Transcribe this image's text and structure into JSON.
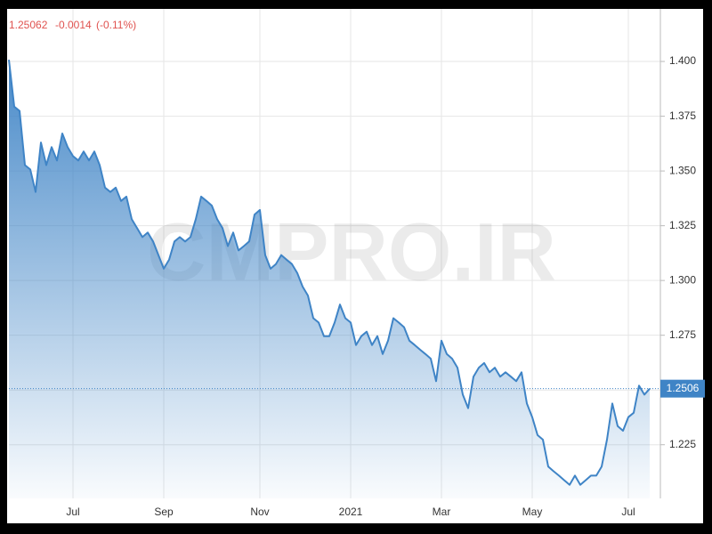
{
  "chart_data": {
    "type": "area",
    "header": {
      "price": "1.25062",
      "change": "-0.0014",
      "change_pct": "(-0.11%)"
    },
    "watermark": "CMPRO.IR",
    "last_label": "1.2506",
    "color": "#3f84c6",
    "grid": true,
    "ylim": [
      1.2005,
      1.424
    ],
    "yticks": [
      1.225,
      {
        "value": 1.25,
        "label": ""
      },
      1.275,
      {
        "value": 1.3,
        "label": "1.300"
      },
      1.325,
      {
        "value": 1.35,
        "label": "1.350"
      },
      1.375,
      {
        "value": 1.4,
        "label": "1.400"
      }
    ],
    "categories": [
      null,
      null,
      null,
      null,
      null,
      null,
      null,
      null,
      null,
      null,
      null,
      null,
      "Jul",
      null,
      null,
      null,
      null,
      null,
      null,
      null,
      null,
      null,
      null,
      null,
      null,
      null,
      null,
      null,
      null,
      "Sep",
      null,
      null,
      null,
      null,
      null,
      null,
      null,
      null,
      null,
      null,
      null,
      null,
      null,
      null,
      null,
      null,
      null,
      "Nov",
      null,
      null,
      null,
      null,
      null,
      null,
      null,
      null,
      null,
      null,
      null,
      null,
      null,
      null,
      null,
      null,
      "2021",
      null,
      null,
      null,
      null,
      null,
      null,
      null,
      null,
      null,
      null,
      null,
      null,
      null,
      null,
      null,
      null,
      "Mar",
      null,
      null,
      null,
      null,
      null,
      null,
      null,
      null,
      null,
      null,
      null,
      null,
      null,
      null,
      null,
      null,
      "May",
      null,
      null,
      null,
      null,
      null,
      null,
      null,
      null,
      null,
      null,
      null,
      null,
      null,
      null,
      null,
      null,
      null,
      "Jul",
      null,
      null,
      null,
      null
    ],
    "values": [
      1.4008,
      1.3794,
      1.3774,
      1.3527,
      1.3507,
      1.3404,
      1.363,
      1.3527,
      1.3609,
      1.3548,
      1.3671,
      1.3609,
      1.3568,
      1.3548,
      1.3589,
      1.3548,
      1.3589,
      1.3527,
      1.3424,
      1.3404,
      1.3424,
      1.3363,
      1.3383,
      1.328,
      1.3239,
      1.3198,
      1.3219,
      1.3178,
      1.3116,
      1.3054,
      1.3095,
      1.3178,
      1.3198,
      1.3178,
      1.3198,
      1.328,
      1.3383,
      1.3363,
      1.3342,
      1.328,
      1.3239,
      1.3157,
      1.3219,
      1.3137,
      1.3157,
      1.3178,
      1.3301,
      1.3322,
      1.3116,
      1.3054,
      1.3075,
      1.3116,
      1.3095,
      1.3075,
      1.3034,
      1.2972,
      1.2931,
      1.2828,
      1.2808,
      1.2746,
      1.2746,
      1.2808,
      1.289,
      1.2828,
      1.2808,
      1.2705,
      1.2746,
      1.2766,
      1.2705,
      1.2746,
      1.2664,
      1.2725,
      1.2828,
      1.2808,
      1.2787,
      1.2725,
      1.2705,
      1.2684,
      1.2664,
      1.2643,
      1.254,
      1.2725,
      1.2664,
      1.2643,
      1.2602,
      1.2479,
      1.2417,
      1.2561,
      1.2602,
      1.2623,
      1.2581,
      1.2602,
      1.2561,
      1.2581,
      1.2561,
      1.254,
      1.2581,
      1.2438,
      1.2376,
      1.2294,
      1.2273,
      1.215,
      1.2129,
      1.2109,
      1.2088,
      1.2067,
      1.2109,
      1.2067,
      1.2088,
      1.2109,
      1.2109,
      1.215,
      1.2273,
      1.2438,
      1.2335,
      1.2314,
      1.2376,
      1.2396,
      1.252,
      1.2479,
      1.25062
    ]
  }
}
